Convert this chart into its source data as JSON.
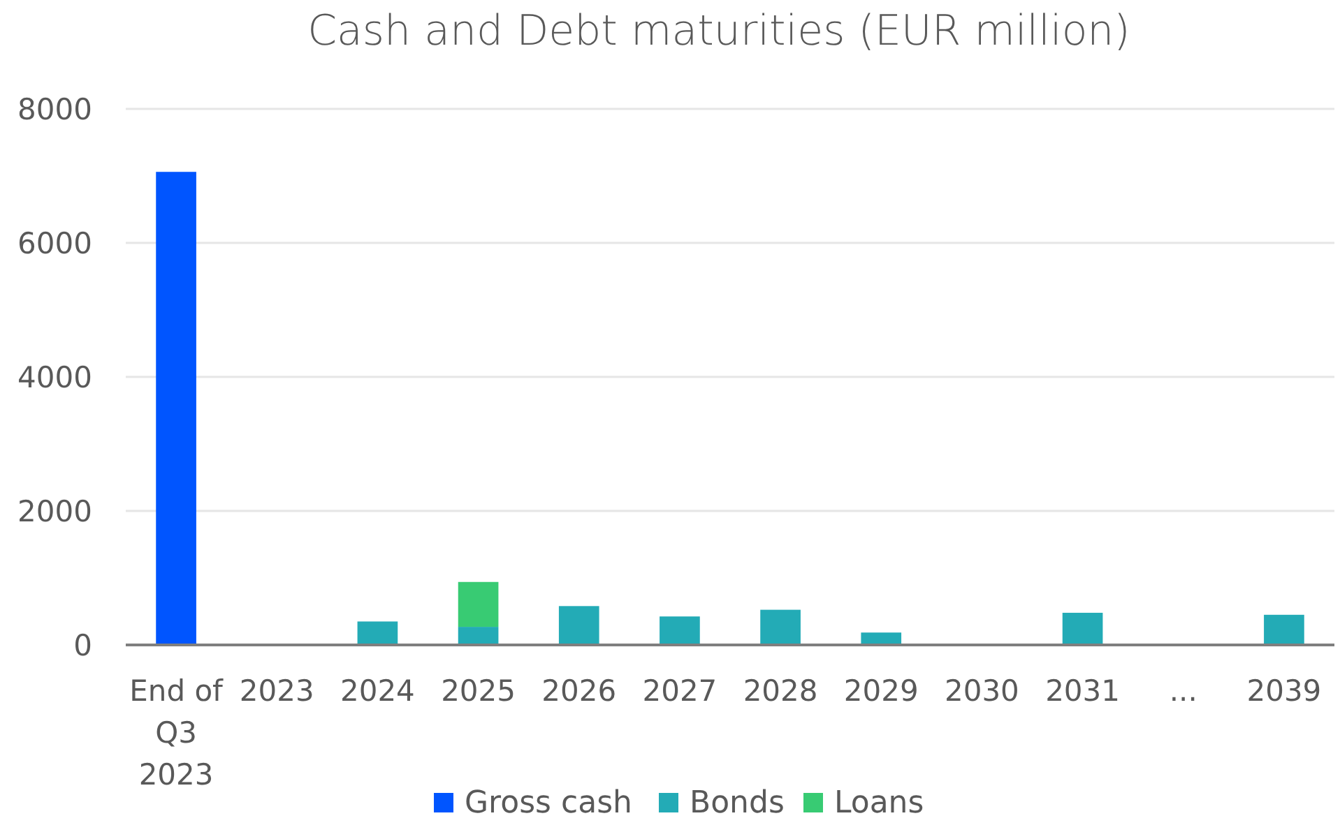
{
  "chart_data": {
    "type": "bar",
    "title": "Cash and Debt maturities (EUR million)",
    "categories": [
      "End of Q3 2023",
      "2023",
      "2024",
      "2025",
      "2026",
      "2027",
      "2028",
      "2029",
      "2030",
      "2031",
      "...",
      "2039"
    ],
    "stacked": true,
    "series": [
      {
        "name": "Gross cash",
        "color": "#0055ff",
        "values": [
          7060,
          null,
          null,
          null,
          null,
          null,
          null,
          null,
          null,
          null,
          null,
          null
        ]
      },
      {
        "name": "Bonds",
        "color": "#23abb6",
        "values": [
          null,
          null,
          350,
          270,
          580,
          425,
          525,
          185,
          null,
          480,
          null,
          450
        ]
      },
      {
        "name": "Loans",
        "color": "#38cb73",
        "values": [
          null,
          null,
          null,
          670,
          null,
          null,
          null,
          null,
          null,
          null,
          null,
          null
        ]
      }
    ],
    "ylim": [
      0,
      8000
    ],
    "yticks": [
      0,
      2000,
      4000,
      6000,
      8000
    ],
    "grid": "y",
    "legend": "bottom"
  }
}
